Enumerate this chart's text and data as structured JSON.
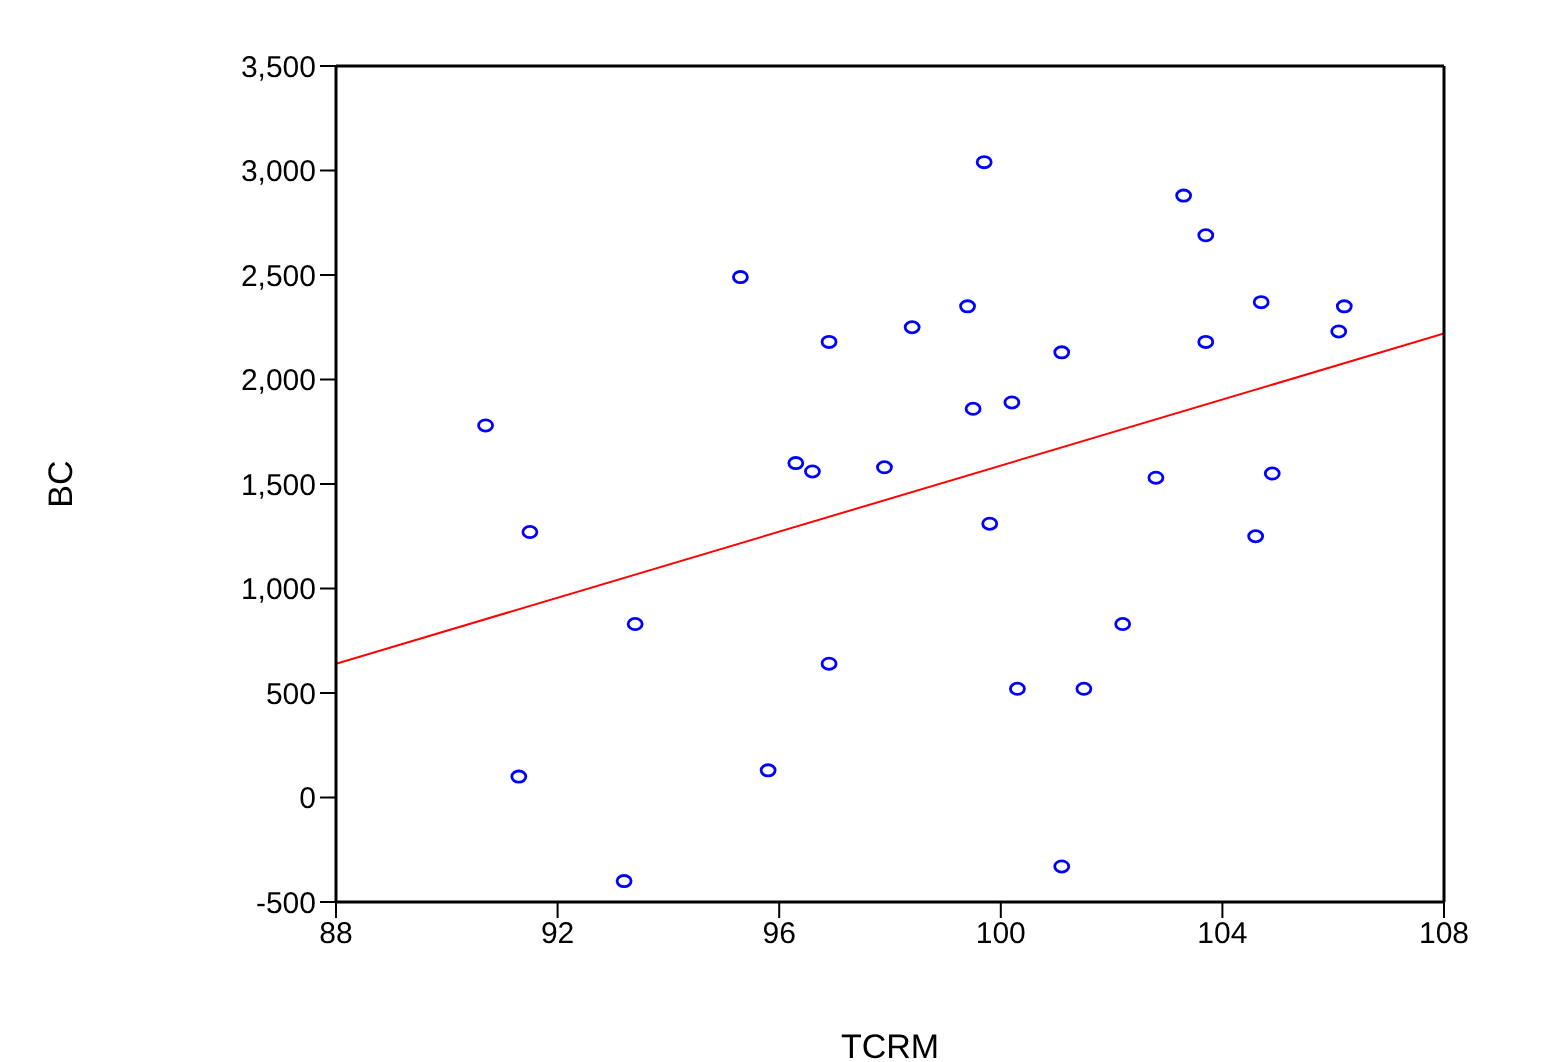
{
  "chart_data": {
    "type": "scatter",
    "xlabel": "TCRM",
    "ylabel": "BC",
    "marker": "circle",
    "xlim": [
      88,
      108
    ],
    "xticks": [
      88,
      92,
      96,
      100,
      104,
      108
    ],
    "ylim": [
      -500,
      3500
    ],
    "yticks": [
      {
        "value": -500,
        "label": "-500"
      },
      0,
      500,
      {
        "value": 1000,
        "label": "1,000"
      },
      {
        "value": 1500,
        "label": "1,500"
      },
      {
        "value": 2000,
        "label": "2,000"
      },
      {
        "value": 2500,
        "label": "2,500"
      },
      {
        "value": 3000,
        "label": "3,000"
      },
      {
        "value": 3500,
        "label": "3,500"
      }
    ],
    "series": [
      {
        "color": "#0000ff",
        "x": [
          90.7,
          91.5,
          91.3,
          93.4,
          93.2,
          95.3,
          95.8,
          96.3,
          96.6,
          96.9,
          96.9,
          97.9,
          98.4,
          99.4,
          99.5,
          99.7,
          99.8,
          100.2,
          100.3,
          101.1,
          101.1,
          101.5,
          102.2,
          102.8,
          103.3,
          103.7,
          103.7,
          104.6,
          104.7,
          104.9,
          106.1,
          106.2
        ],
        "values": [
          1780,
          1270,
          100,
          830,
          -400,
          2490,
          130,
          1600,
          1560,
          2180,
          640,
          1580,
          2250,
          2350,
          1860,
          3040,
          1310,
          1890,
          520,
          2130,
          -330,
          520,
          830,
          1530,
          2880,
          2690,
          2180,
          1250,
          2370,
          1550,
          2230,
          2350
        ]
      },
      {
        "type": "line",
        "marker": "none",
        "color": "#ff0000",
        "x": [
          88,
          108
        ],
        "values": [
          640,
          2220
        ]
      }
    ]
  }
}
